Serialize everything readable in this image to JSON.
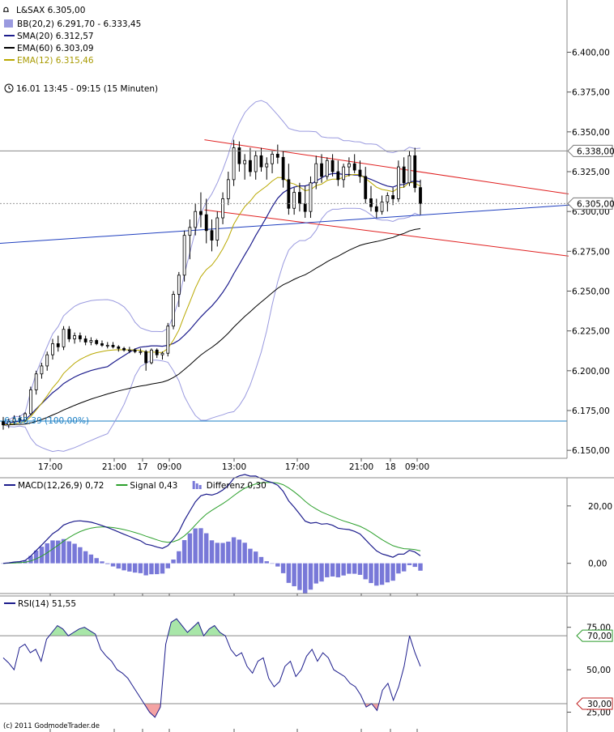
{
  "chart_data": [
    {
      "type": "candlestick",
      "instrument_label": "L&SAX 6.305,00",
      "legend": [
        {
          "name": "BB(20,2) 6.291,70 - 6.333,45",
          "color": "#9a9adf",
          "kind": "box"
        },
        {
          "name": "SMA(20) 6.312,57",
          "color": "#1c1c8c",
          "kind": "line"
        },
        {
          "name": "EMA(60) 6.303,09",
          "color": "#000000",
          "kind": "line"
        },
        {
          "name": "EMA(12) 6.315,46",
          "color": "#b9a800",
          "kind": "line"
        }
      ],
      "period_label": "16.01 13:45 - 09:15 (15 Minuten)",
      "ylim": [
        6145,
        6415
      ],
      "y_ticks": [
        6150,
        6175,
        6200,
        6225,
        6250,
        6275,
        6300,
        6325,
        6350,
        6375,
        6400
      ],
      "y_tick_labels": [
        "6.150,00",
        "6.175,00",
        "6.200,00",
        "6.225,00",
        "6.250,00",
        "6.275,00",
        "6.300,00",
        "6.325,00",
        "6.350,00",
        "6.375,00",
        "6.400,00"
      ],
      "x_tick_labels": [
        "17:00",
        "21:00",
        "17",
        "09:00",
        "13:00",
        "17:00",
        "21:00",
        "18",
        "09:00"
      ],
      "price_markers": [
        {
          "value": 6338,
          "label": "6.338,00"
        },
        {
          "value": 6305,
          "label": "6.305,00"
        }
      ],
      "reference_line": {
        "value": 6168.39,
        "label": "6.168,39 (100,00%)",
        "color": "#1b7fc4"
      },
      "channel_upper": [
        {
          "x": 0.333,
          "y": 6345
        },
        {
          "x": 0.926,
          "y": 6311
        }
      ],
      "channel_lower": [
        {
          "x": 0.333,
          "y": 6301
        },
        {
          "x": 0.926,
          "y": 6272
        }
      ],
      "trend_line": [
        {
          "x": 0.0,
          "y": 6280
        },
        {
          "x": 0.965,
          "y": 6305
        }
      ],
      "candles_ohlc": [
        [
          6168,
          6171,
          6163,
          6166
        ],
        [
          6166,
          6170,
          6164,
          6168
        ],
        [
          6168,
          6172,
          6166,
          6170
        ],
        [
          6170,
          6172,
          6167,
          6169
        ],
        [
          6169,
          6174,
          6168,
          6173
        ],
        [
          6173,
          6190,
          6172,
          6188
        ],
        [
          6188,
          6200,
          6185,
          6198
        ],
        [
          6198,
          6205,
          6195,
          6203
        ],
        [
          6203,
          6212,
          6200,
          6210
        ],
        [
          6210,
          6220,
          6207,
          6217
        ],
        [
          6217,
          6222,
          6212,
          6215
        ],
        [
          6215,
          6228,
          6213,
          6226
        ],
        [
          6226,
          6228,
          6218,
          6220
        ],
        [
          6220,
          6224,
          6217,
          6222
        ],
        [
          6222,
          6224,
          6218,
          6220
        ],
        [
          6220,
          6222,
          6216,
          6218
        ],
        [
          6218,
          6221,
          6216,
          6219
        ],
        [
          6219,
          6220,
          6216,
          6217
        ],
        [
          6217,
          6219,
          6215,
          6216
        ],
        [
          6216,
          6218,
          6214,
          6216
        ],
        [
          6216,
          6218,
          6214,
          6215
        ],
        [
          6215,
          6216,
          6212,
          6214
        ],
        [
          6214,
          6215,
          6212,
          6213
        ],
        [
          6213,
          6215,
          6211,
          6213
        ],
        [
          6213,
          6214,
          6211,
          6212
        ],
        [
          6212,
          6214,
          6210,
          6212
        ],
        [
          6212,
          6213,
          6200,
          6205
        ],
        [
          6205,
          6214,
          6204,
          6213
        ],
        [
          6213,
          6214,
          6208,
          6210
        ],
        [
          6210,
          6212,
          6207,
          6211
        ],
        [
          6211,
          6230,
          6209,
          6228
        ],
        [
          6228,
          6250,
          6226,
          6248
        ],
        [
          6248,
          6262,
          6240,
          6260
        ],
        [
          6260,
          6288,
          6256,
          6285
        ],
        [
          6285,
          6295,
          6270,
          6290
        ],
        [
          6290,
          6305,
          6285,
          6300
        ],
        [
          6300,
          6312,
          6290,
          6298
        ],
        [
          6298,
          6308,
          6280,
          6288
        ],
        [
          6288,
          6295,
          6275,
          6282
        ],
        [
          6282,
          6300,
          6278,
          6296
        ],
        [
          6296,
          6312,
          6292,
          6308
        ],
        [
          6308,
          6325,
          6304,
          6320
        ],
        [
          6320,
          6345,
          6316,
          6340
        ],
        [
          6340,
          6344,
          6325,
          6330
        ],
        [
          6330,
          6336,
          6320,
          6332
        ],
        [
          6332,
          6340,
          6322,
          6325
        ],
        [
          6325,
          6338,
          6320,
          6335
        ],
        [
          6335,
          6340,
          6325,
          6328
        ],
        [
          6328,
          6334,
          6320,
          6330
        ],
        [
          6330,
          6338,
          6324,
          6336
        ],
        [
          6336,
          6342,
          6330,
          6334
        ],
        [
          6334,
          6338,
          6315,
          6320
        ],
        [
          6320,
          6330,
          6298,
          6302
        ],
        [
          6302,
          6315,
          6298,
          6312
        ],
        [
          6312,
          6318,
          6300,
          6305
        ],
        [
          6305,
          6316,
          6296,
          6300
        ],
        [
          6300,
          6322,
          6296,
          6318
        ],
        [
          6318,
          6335,
          6314,
          6330
        ],
        [
          6330,
          6336,
          6318,
          6322
        ],
        [
          6322,
          6334,
          6320,
          6332
        ],
        [
          6332,
          6336,
          6322,
          6325
        ],
        [
          6325,
          6332,
          6316,
          6320
        ],
        [
          6320,
          6330,
          6315,
          6328
        ],
        [
          6328,
          6334,
          6322,
          6330
        ],
        [
          6330,
          6336,
          6324,
          6326
        ],
        [
          6326,
          6332,
          6318,
          6322
        ],
        [
          6322,
          6328,
          6305,
          6308
        ],
        [
          6308,
          6316,
          6300,
          6303
        ],
        [
          6303,
          6308,
          6296,
          6300
        ],
        [
          6300,
          6310,
          6298,
          6306
        ],
        [
          6306,
          6312,
          6300,
          6310
        ],
        [
          6310,
          6315,
          6304,
          6308
        ],
        [
          6308,
          6332,
          6306,
          6328
        ],
        [
          6328,
          6334,
          6315,
          6318
        ],
        [
          6318,
          6338,
          6316,
          6335
        ],
        [
          6335,
          6340,
          6312,
          6315
        ],
        [
          6315,
          6320,
          6298,
          6305
        ]
      ]
    },
    {
      "type": "line",
      "legend": [
        {
          "name": "MACD(12,26,9) 0,72",
          "color": "#1c1c8c",
          "kind": "line"
        },
        {
          "name": "Signal 0,43",
          "color": "#2ca02c",
          "kind": "line"
        },
        {
          "name": "Differenz 0,30",
          "color": "#7878d8",
          "kind": "bars"
        }
      ],
      "ylim": [
        -8,
        27
      ],
      "y_ticks": [
        0,
        20
      ],
      "y_tick_labels": [
        "0,00",
        "20,00"
      ]
    },
    {
      "type": "line",
      "legend": [
        {
          "name": "RSI(14) 51,55",
          "color": "#1c1c8c",
          "kind": "line"
        }
      ],
      "ylim": [
        20,
        82
      ],
      "y_ticks": [
        25,
        50,
        75
      ],
      "y_tick_labels": [
        "25,00",
        "50,00",
        "75,00"
      ],
      "levels": [
        {
          "value": 70,
          "label": "70,00"
        },
        {
          "value": 30,
          "label": "30,00"
        }
      ],
      "values": [
        57,
        54,
        50,
        63,
        65,
        60,
        62,
        55,
        68,
        72,
        76,
        74,
        70,
        72,
        74,
        75,
        73,
        71,
        62,
        58,
        55,
        50,
        48,
        45,
        40,
        35,
        30,
        25,
        22,
        28,
        65,
        78,
        80,
        76,
        72,
        75,
        78,
        70,
        74,
        76,
        72,
        70,
        62,
        58,
        60,
        52,
        48,
        55,
        57,
        45,
        40,
        43,
        52,
        55,
        46,
        50,
        58,
        62,
        55,
        60,
        57,
        50,
        48,
        46,
        42,
        40,
        35,
        28,
        30,
        26,
        38,
        42,
        32,
        40,
        52,
        70,
        60,
        52
      ]
    }
  ],
  "copyright": "(c) 2011 GodmodeTrader.de"
}
